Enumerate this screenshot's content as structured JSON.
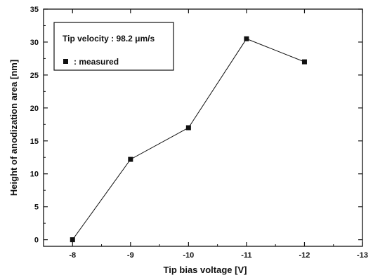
{
  "chart_data": {
    "type": "line",
    "title": "",
    "xlabel": "Tip bias voltage [V]",
    "ylabel": "Height of anodization area [nm]",
    "xlim": [
      -7.5,
      -13
    ],
    "ylim": [
      -1,
      35
    ],
    "x_reversed": true,
    "x_ticks": [
      -8,
      -9,
      -10,
      -11,
      -12,
      -13
    ],
    "x_tick_labels": [
      "-8",
      "-9",
      "-10",
      "-11",
      "-12",
      "-13"
    ],
    "y_ticks": [
      0,
      5,
      10,
      15,
      20,
      25,
      30,
      35
    ],
    "y_tick_labels": [
      "0",
      "5",
      "10",
      "15",
      "20",
      "25",
      "30",
      "35"
    ],
    "grid": false,
    "legend_placement": "top-left",
    "legend": {
      "line1": "Tip velocity : 98.2 μm/s",
      "marker_label": ": measured"
    },
    "series": [
      {
        "name": "measured",
        "x": [
          -8,
          -9,
          -10,
          -11,
          -12
        ],
        "y": [
          0,
          12.2,
          17,
          30.5,
          27
        ],
        "color": "#111111",
        "marker": "square"
      }
    ]
  }
}
